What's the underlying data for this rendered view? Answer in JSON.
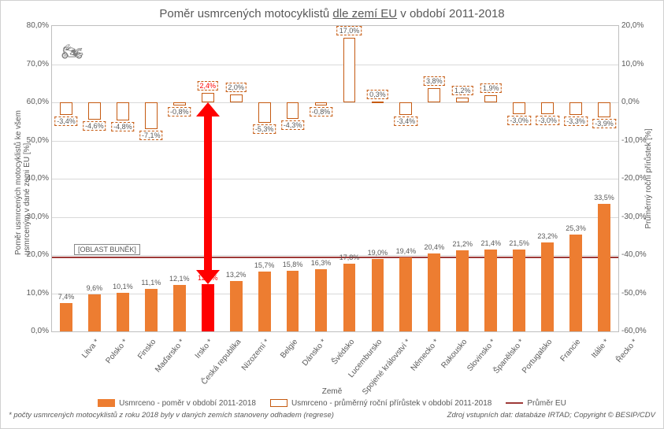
{
  "title_parts": [
    "Poměr usmrcených motocyklistů ",
    "dle zemí EU",
    " v období 2011-2018"
  ],
  "y_left_title": "Poměr usmrcených motocyklistů ke všem usmrceným v dané zemi EU [%]",
  "y_right_title": "Průměrný roční přírůstek [%]",
  "x_axis_title": "Země",
  "left_axis": {
    "min": 0,
    "max": 80,
    "step": 10,
    "fmt_suffix": ",0%"
  },
  "right_axis": {
    "min": -60,
    "max": 20,
    "step": 10,
    "fmt_suffix": ",0%"
  },
  "eu_avg": 19.5,
  "region_label": "[OBLAST BUNĚK]",
  "highlight_index": 5,
  "legend": {
    "bar": "Usmrceno - poměr v období 2011-2018",
    "open": "Usmrceno - průměrný roční přírůstek v období 2011-2018",
    "line": "Průměr EU"
  },
  "footer_left": "* počty usmrcených motocyklistů z roku 2018 byly v daných zemích stanoveny odhadem (regrese)",
  "footer_right": "Zdroj vstupních dat: databáze IRTAD; Copyright © BESIP/CDV",
  "colors": {
    "bar": "#ed7d31",
    "bar_highlight": "#ff0000",
    "avg_line": "#9e3a38",
    "growth_border": "#c55a11",
    "grid": "#d9d9d9",
    "text": "#595959"
  },
  "categories": [
    {
      "name": "Litva *",
      "ratio": 7.4,
      "growth": -3.4
    },
    {
      "name": "Polsko *",
      "ratio": 9.6,
      "growth": -4.6
    },
    {
      "name": "Finsko",
      "ratio": 10.1,
      "growth": -4.8
    },
    {
      "name": "Maďarsko *",
      "ratio": 11.1,
      "growth": -7.1
    },
    {
      "name": "Irsko *",
      "ratio": 12.1,
      "growth": -0.8
    },
    {
      "name": "Česká republika",
      "ratio": 12.4,
      "growth": 2.4
    },
    {
      "name": "Nizozemí *",
      "ratio": 13.2,
      "growth": 2.0
    },
    {
      "name": "Belgie",
      "ratio": 15.7,
      "growth": -5.3
    },
    {
      "name": "Dánsko *",
      "ratio": 15.8,
      "growth": -4.3
    },
    {
      "name": "Švédsko",
      "ratio": 16.3,
      "growth": -0.8
    },
    {
      "name": "Lucembursko",
      "ratio": 17.8,
      "growth": 17.0
    },
    {
      "name": "Spojené království *",
      "ratio": 19.0,
      "growth": 0.3
    },
    {
      "name": "Německo *",
      "ratio": 19.4,
      "growth": -3.4
    },
    {
      "name": "Rakousko",
      "ratio": 20.4,
      "growth": 3.8
    },
    {
      "name": "Slovinsko *",
      "ratio": 21.2,
      "growth": 1.2
    },
    {
      "name": "Španělsko *",
      "ratio": 21.4,
      "growth": 1.9
    },
    {
      "name": "Portugalsko",
      "ratio": 21.5,
      "growth": -3.0
    },
    {
      "name": "Francie",
      "ratio": 23.2,
      "growth": -3.0
    },
    {
      "name": "Itálie *",
      "ratio": 25.3,
      "growth": -3.3
    },
    {
      "name": "Řecko *",
      "ratio": 33.5,
      "growth": -3.9
    }
  ]
}
